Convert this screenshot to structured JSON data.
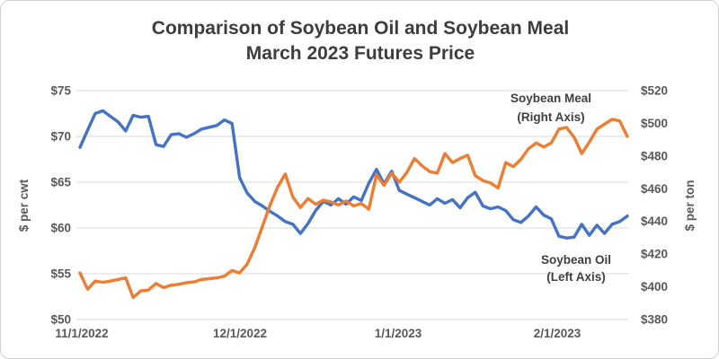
{
  "chart_data": {
    "type": "line",
    "title_line1": "Comparison of Soybean Oil and Soybean Meal",
    "title_line2": "March 2023 Futures Price",
    "grid_color": "#d9d9d9",
    "left_axis": {
      "label": "$ per cwt",
      "min": 50,
      "max": 75,
      "step": 5,
      "ticks_top_to_bottom": [
        "$75",
        "$70",
        "$65",
        "$60",
        "$55",
        "$50"
      ]
    },
    "right_axis": {
      "label": "$ per ton",
      "min": 380,
      "max": 520,
      "step": 20,
      "ticks_top_to_bottom": [
        "$520",
        "$500",
        "$480",
        "$460",
        "$440",
        "$420",
        "$400",
        "$380"
      ]
    },
    "x_axis": {
      "tick_labels": [
        "11/1/2022",
        "12/1/2022",
        "1/1/2023",
        "2/1/2023"
      ]
    },
    "dates": [
      "11/1/2022",
      "11/2/2022",
      "11/3/2022",
      "11/4/2022",
      "11/7/2022",
      "11/8/2022",
      "11/9/2022",
      "11/10/2022",
      "11/11/2022",
      "11/14/2022",
      "11/15/2022",
      "11/16/2022",
      "11/17/2022",
      "11/18/2022",
      "11/21/2022",
      "11/22/2022",
      "11/23/2022",
      "11/25/2022",
      "11/28/2022",
      "11/29/2022",
      "11/30/2022",
      "12/1/2022",
      "12/2/2022",
      "12/5/2022",
      "12/6/2022",
      "12/7/2022",
      "12/8/2022",
      "12/9/2022",
      "12/12/2022",
      "12/13/2022",
      "12/14/2022",
      "12/15/2022",
      "12/16/2022",
      "12/19/2022",
      "12/20/2022",
      "12/21/2022",
      "12/22/2022",
      "12/23/2022",
      "12/27/2022",
      "12/28/2022",
      "12/29/2022",
      "12/30/2022",
      "1/3/2023",
      "1/4/2023",
      "1/5/2023",
      "1/6/2023",
      "1/9/2023",
      "1/10/2023",
      "1/11/2023",
      "1/12/2023",
      "1/13/2023",
      "1/17/2023",
      "1/18/2023",
      "1/19/2023",
      "1/20/2023",
      "1/23/2023",
      "1/24/2023",
      "1/25/2023",
      "1/26/2023",
      "1/27/2023",
      "1/30/2023",
      "1/31/2023",
      "2/1/2023",
      "2/2/2023",
      "2/3/2023",
      "2/6/2023",
      "2/7/2023",
      "2/8/2023",
      "2/9/2023",
      "2/10/2023",
      "2/13/2023",
      "2/14/2023",
      "2/15/2023"
    ],
    "series": [
      {
        "name": "Soybean Oil",
        "axis": "left",
        "color": "#4472C4",
        "annotation_line1": "Soybean Oil",
        "annotation_line2": "(Left Axis)",
        "values": [
          68.8,
          70.7,
          72.5,
          72.8,
          72.2,
          71.6,
          70.6,
          72.3,
          72.1,
          72.2,
          69.1,
          68.9,
          70.2,
          70.3,
          69.9,
          70.3,
          70.8,
          71.0,
          71.2,
          71.8,
          71.4,
          65.5,
          63.8,
          62.9,
          62.4,
          61.8,
          61.3,
          60.7,
          60.4,
          59.4,
          60.5,
          61.9,
          62.9,
          62.5,
          63.2,
          62.6,
          63.4,
          63.0,
          64.9,
          66.4,
          64.8,
          66.2,
          64.1,
          63.7,
          63.3,
          62.9,
          62.5,
          63.2,
          62.7,
          63.1,
          62.2,
          63.3,
          63.9,
          62.4,
          62.1,
          62.3,
          61.9,
          60.9,
          60.6,
          61.3,
          62.3,
          61.4,
          61.0,
          59.1,
          58.9,
          59.0,
          60.4,
          59.2,
          60.3,
          59.4,
          60.4,
          60.7,
          61.3
        ]
      },
      {
        "name": "Soybean Meal",
        "axis": "right",
        "color": "#ED7D31",
        "annotation_line1": "Soybean Meal",
        "annotation_line2": "(Right Axis)",
        "values": [
          408.5,
          398.5,
          403.5,
          402.8,
          403.5,
          404.5,
          405.5,
          393.5,
          397.5,
          398.0,
          402.0,
          399.5,
          401.0,
          401.5,
          402.5,
          403.0,
          404.5,
          405.0,
          405.5,
          406.5,
          410.0,
          408.5,
          414.0,
          424.0,
          437.0,
          450.0,
          461.0,
          469.0,
          455.0,
          448.5,
          454.0,
          450.5,
          453.0,
          452.0,
          450.0,
          452.5,
          449.5,
          451.0,
          447.5,
          468.5,
          462.0,
          469.5,
          464.0,
          470.0,
          478.5,
          474.0,
          470.5,
          469.5,
          481.5,
          476.0,
          478.5,
          480.5,
          468.0,
          465.0,
          463.5,
          460.5,
          476.0,
          473.5,
          478.0,
          484.5,
          488.0,
          485.5,
          488.0,
          496.5,
          497.5,
          491.5,
          481.5,
          488.5,
          496.5,
          499.5,
          502.5,
          501.5,
          492.0
        ]
      }
    ]
  }
}
